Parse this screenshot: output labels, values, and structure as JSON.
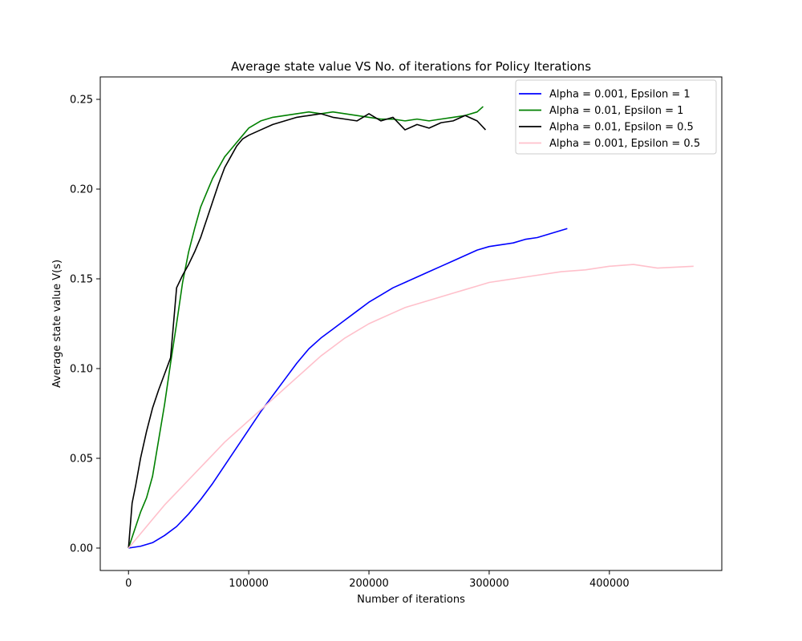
{
  "chart_data": {
    "type": "line",
    "title": "Average state value VS No. of iterations for Policy Iterations",
    "xlabel": "Number of iterations",
    "ylabel": "Average state value V(s)",
    "xlim": [
      -23500,
      493500
    ],
    "ylim": [
      -0.0125,
      0.2625
    ],
    "xticks": [
      0,
      100000,
      200000,
      300000,
      400000
    ],
    "yticks": [
      0.0,
      0.05,
      0.1,
      0.15,
      0.2,
      0.25
    ],
    "xtick_labels": [
      "0",
      "100000",
      "200000",
      "300000",
      "400000"
    ],
    "ytick_labels": [
      "0.00",
      "0.05",
      "0.10",
      "0.15",
      "0.20",
      "0.25"
    ],
    "grid": false,
    "legend_position": "top-right",
    "series": [
      {
        "name": "Alpha = 0.001, Epsilon = 1",
        "color": "#0000ff",
        "x": [
          0,
          10000,
          20000,
          30000,
          40000,
          50000,
          60000,
          70000,
          80000,
          90000,
          100000,
          110000,
          120000,
          130000,
          140000,
          150000,
          160000,
          170000,
          180000,
          190000,
          200000,
          210000,
          220000,
          230000,
          240000,
          250000,
          260000,
          270000,
          280000,
          290000,
          300000,
          310000,
          320000,
          330000,
          340000,
          350000,
          365000
        ],
        "y": [
          0.0,
          0.001,
          0.003,
          0.007,
          0.012,
          0.019,
          0.027,
          0.036,
          0.046,
          0.056,
          0.066,
          0.076,
          0.085,
          0.094,
          0.103,
          0.111,
          0.117,
          0.122,
          0.127,
          0.132,
          0.137,
          0.141,
          0.145,
          0.148,
          0.151,
          0.154,
          0.157,
          0.16,
          0.163,
          0.166,
          0.168,
          0.169,
          0.17,
          0.172,
          0.173,
          0.175,
          0.178
        ]
      },
      {
        "name": "Alpha = 0.01, Epsilon = 1",
        "color": "#008000",
        "x": [
          0,
          5000,
          10000,
          15000,
          20000,
          25000,
          30000,
          35000,
          40000,
          45000,
          50000,
          55000,
          60000,
          65000,
          70000,
          75000,
          80000,
          85000,
          90000,
          95000,
          100000,
          110000,
          120000,
          130000,
          140000,
          150000,
          160000,
          170000,
          180000,
          190000,
          200000,
          210000,
          220000,
          230000,
          240000,
          250000,
          260000,
          270000,
          280000,
          290000,
          295000
        ],
        "y": [
          0.0,
          0.01,
          0.02,
          0.028,
          0.04,
          0.06,
          0.08,
          0.103,
          0.125,
          0.148,
          0.165,
          0.178,
          0.19,
          0.198,
          0.206,
          0.212,
          0.218,
          0.222,
          0.226,
          0.23,
          0.234,
          0.238,
          0.24,
          0.241,
          0.242,
          0.243,
          0.242,
          0.243,
          0.242,
          0.241,
          0.24,
          0.239,
          0.239,
          0.238,
          0.239,
          0.238,
          0.239,
          0.24,
          0.241,
          0.243,
          0.246
        ]
      },
      {
        "name": "Alpha = 0.01, Epsilon = 0.5",
        "color": "#000000",
        "x": [
          0,
          3000,
          6000,
          10000,
          15000,
          20000,
          25000,
          30000,
          35000,
          40000,
          45000,
          50000,
          55000,
          60000,
          65000,
          70000,
          75000,
          80000,
          85000,
          90000,
          95000,
          100000,
          110000,
          120000,
          130000,
          140000,
          150000,
          160000,
          170000,
          180000,
          190000,
          200000,
          210000,
          220000,
          230000,
          240000,
          250000,
          260000,
          270000,
          280000,
          290000,
          297000
        ],
        "y": [
          0.0,
          0.025,
          0.035,
          0.05,
          0.065,
          0.078,
          0.088,
          0.097,
          0.106,
          0.145,
          0.152,
          0.158,
          0.165,
          0.173,
          0.183,
          0.193,
          0.203,
          0.212,
          0.218,
          0.224,
          0.228,
          0.23,
          0.233,
          0.236,
          0.238,
          0.24,
          0.241,
          0.242,
          0.24,
          0.239,
          0.238,
          0.242,
          0.238,
          0.24,
          0.233,
          0.236,
          0.234,
          0.237,
          0.238,
          0.241,
          0.238,
          0.233
        ]
      },
      {
        "name": "Alpha = 0.001, Epsilon = 0.5",
        "color": "#ffc0cb",
        "x": [
          0,
          10000,
          20000,
          30000,
          40000,
          50000,
          60000,
          70000,
          80000,
          90000,
          100000,
          110000,
          120000,
          130000,
          140000,
          150000,
          160000,
          170000,
          180000,
          190000,
          200000,
          210000,
          220000,
          230000,
          240000,
          250000,
          260000,
          270000,
          280000,
          290000,
          300000,
          320000,
          340000,
          360000,
          380000,
          400000,
          420000,
          440000,
          470000
        ],
        "y": [
          0.0,
          0.008,
          0.016,
          0.024,
          0.031,
          0.038,
          0.045,
          0.052,
          0.059,
          0.065,
          0.071,
          0.077,
          0.083,
          0.089,
          0.095,
          0.101,
          0.107,
          0.112,
          0.117,
          0.121,
          0.125,
          0.128,
          0.131,
          0.134,
          0.136,
          0.138,
          0.14,
          0.142,
          0.144,
          0.146,
          0.148,
          0.15,
          0.152,
          0.154,
          0.155,
          0.157,
          0.158,
          0.156,
          0.157
        ]
      }
    ]
  }
}
